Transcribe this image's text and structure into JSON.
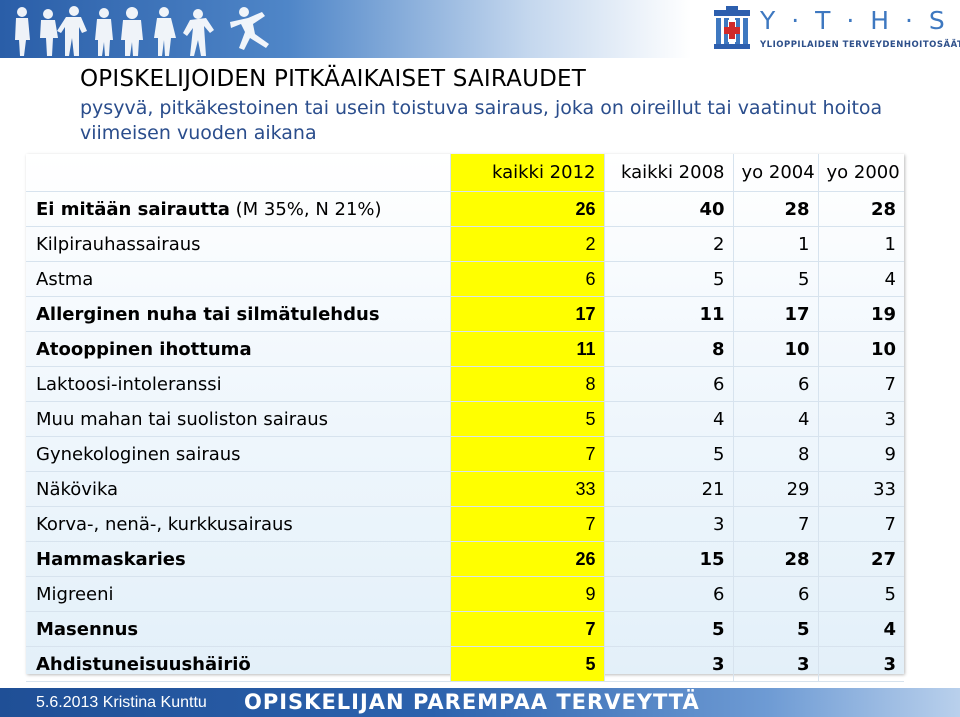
{
  "header": {
    "logo_letters": "Y · T · H · S",
    "logo_subtitle": "YLIOPPILAIDEN TERVEYDENHOITOSÄÄTIÖ"
  },
  "title": "OPISKELIJOIDEN PITKÄAIKAISET SAIRAUDET",
  "subtitle": "pysyvä, pitkäkestoinen tai usein toistuva sairaus, joka on oireillut tai vaatinut hoitoa viimeisen vuoden aikana",
  "table": {
    "columns": [
      "kaikki 2012",
      "kaikki 2008",
      "yo 2004",
      "yo 2000"
    ],
    "rows": [
      {
        "label": "Ei mitään sairautta",
        "note": " (M 35%, N 21%)",
        "bold": true,
        "values": [
          "26",
          "40",
          "28",
          "28"
        ]
      },
      {
        "label": "Kilpirauhassairaus",
        "note": "",
        "bold": false,
        "values": [
          "2",
          "2",
          "1",
          "1"
        ]
      },
      {
        "label": "Astma",
        "note": "",
        "bold": false,
        "values": [
          "6",
          "5",
          "5",
          "4"
        ]
      },
      {
        "label": "Allerginen nuha tai silmätulehdus",
        "note": "",
        "bold": true,
        "values": [
          "17",
          "11",
          "17",
          "19"
        ]
      },
      {
        "label": "Atooppinen ihottuma",
        "note": "",
        "bold": true,
        "values": [
          "11",
          "8",
          "10",
          "10"
        ]
      },
      {
        "label": "Laktoosi-intoleranssi",
        "note": "",
        "bold": false,
        "values": [
          "8",
          "6",
          "6",
          "7"
        ]
      },
      {
        "label": "Muu mahan tai suoliston sairaus",
        "note": "",
        "bold": false,
        "values": [
          "5",
          "4",
          "4",
          "3"
        ]
      },
      {
        "label": "Gynekologinen sairaus",
        "note": "",
        "bold": false,
        "values": [
          "7",
          "5",
          "8",
          "9"
        ]
      },
      {
        "label": "Näkövika",
        "note": "",
        "bold": false,
        "values": [
          "33",
          "21",
          "29",
          "33"
        ]
      },
      {
        "label": "Korva-, nenä-, kurkkusairaus",
        "note": "",
        "bold": false,
        "values": [
          "7",
          "3",
          "7",
          "7"
        ]
      },
      {
        "label": "Hammaskaries",
        "note": "",
        "bold": true,
        "values": [
          "26",
          "15",
          "28",
          "27"
        ]
      },
      {
        "label": "Migreeni",
        "note": "",
        "bold": false,
        "values": [
          "9",
          "6",
          "6",
          "5"
        ]
      },
      {
        "label": "Masennus",
        "note": "",
        "bold": true,
        "values": [
          "7",
          "5",
          "5",
          "4"
        ]
      },
      {
        "label": "Ahdistuneisuushäiriö",
        "note": "",
        "bold": true,
        "values": [
          "5",
          "3",
          "3",
          "3"
        ]
      }
    ]
  },
  "footer": {
    "date_author": "5.6.2013 Kristina Kunttu",
    "slogan": "OPISKELIJAN PAREMPAA TERVEYTTÄ"
  },
  "colors": {
    "highlight": "#ffff00",
    "accent": "#2a5ea8"
  }
}
